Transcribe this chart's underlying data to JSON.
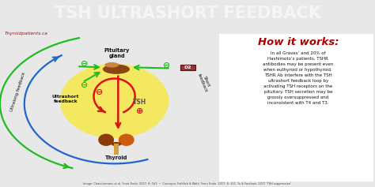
{
  "title": "TSH ULTRASHORT FEEDBACK",
  "title_bg": "#9b0000",
  "title_color": "#f5f5f5",
  "main_bg": "#e8e8e8",
  "watermark": "Thyroidpatients.ca",
  "watermark_color": "#cc0000",
  "how_it_works_title": "How it works:",
  "how_it_works_color": "#aa0000",
  "body_text": "In all Graves’ and 20% of\nHashimoto’s patients, TSHR\nantibodies may be present even\nwhen euthyroid or hypothyroid.\nTSHR Ab interfere with the TSH\nultrashort feedback loop by\nactivating TSH receptors on the\npituitary. TSH secretion may be\ngrossly oversuppressed and\ninconsistent with T4 and T3.",
  "caption": "Image: Chatzitomaris et al. Front Endo. 2017: 8: 163  •  Concepts: Fröhlich & Wahl. Front Endo. 2017: 8: 321; Yu & Farahani. 2017 ‘TSH suppression’",
  "pituitary_label": "Pituitary\ngland",
  "thyroid_label": "Thyroid",
  "ultrashort_label": "Ultrashort\nfeedback",
  "ultralong_label": "Ultralong feedback",
  "short_label": "Short\nfeedback",
  "tsh_label": "TSH",
  "d2_label": "D2",
  "yellow_color": "#f7e84a",
  "yellow_alpha": 0.85,
  "green_color": "#22bb22",
  "red_color": "#dd1111",
  "blue_color": "#2266cc",
  "d2_box_color": "#993333",
  "pit_color1": "#8B4513",
  "pit_color2": "#cd853f",
  "thy_color1": "#8B3a0a",
  "thy_color2": "#cd5c10",
  "thy_stem_color": "#d4a040"
}
